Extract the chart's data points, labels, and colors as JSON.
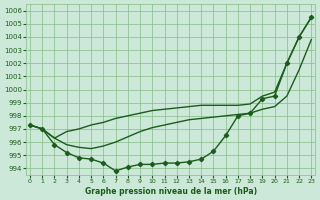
{
  "title": "Graphe pression niveau de la mer (hPa)",
  "bg_color": "#cce8d8",
  "grid_color": "#88bb88",
  "line_color": "#1a5c1a",
  "xlim": [
    -0.3,
    23.3
  ],
  "ylim": [
    993.5,
    1006.5
  ],
  "yticks": [
    994,
    995,
    996,
    997,
    998,
    999,
    1000,
    1001,
    1002,
    1003,
    1004,
    1005,
    1006
  ],
  "xticks": [
    0,
    1,
    2,
    3,
    4,
    5,
    6,
    7,
    8,
    9,
    10,
    11,
    12,
    13,
    14,
    15,
    16,
    17,
    18,
    19,
    20,
    21,
    22,
    23
  ],
  "line_marker": {
    "x": [
      0,
      1,
      2,
      3,
      4,
      5,
      6,
      7,
      8,
      9,
      10,
      11,
      12,
      13,
      14,
      15,
      16,
      17,
      18,
      19,
      20,
      21,
      22,
      23
    ],
    "y": [
      997.3,
      997.0,
      995.8,
      995.2,
      994.8,
      994.7,
      994.4,
      993.8,
      994.1,
      994.3,
      994.3,
      994.4,
      994.4,
      994.5,
      994.7,
      995.3,
      996.5,
      998.0,
      998.2,
      999.3,
      999.5,
      1002.0,
      1004.0,
      1005.5
    ],
    "marker": "D",
    "markersize": 2.2,
    "linewidth": 1.0
  },
  "line_high": {
    "x": [
      0,
      1,
      2,
      3,
      4,
      5,
      6,
      7,
      8,
      9,
      10,
      11,
      12,
      13,
      14,
      15,
      16,
      17,
      18,
      19,
      20,
      21,
      22,
      23
    ],
    "y": [
      997.3,
      997.0,
      996.3,
      996.8,
      997.0,
      997.3,
      997.5,
      997.8,
      998.0,
      998.2,
      998.4,
      998.5,
      998.6,
      998.7,
      998.8,
      998.8,
      998.8,
      998.8,
      998.9,
      999.5,
      999.8,
      1002.0,
      1004.0,
      1005.5
    ],
    "linewidth": 1.0
  },
  "line_mid": {
    "x": [
      0,
      1,
      2,
      3,
      4,
      5,
      6,
      7,
      8,
      9,
      10,
      11,
      12,
      13,
      14,
      15,
      16,
      17,
      18,
      19,
      20,
      21,
      22,
      23
    ],
    "y": [
      997.3,
      997.0,
      996.3,
      995.8,
      995.6,
      995.5,
      995.7,
      996.0,
      996.4,
      996.8,
      997.1,
      997.3,
      997.5,
      997.7,
      997.8,
      997.9,
      998.0,
      998.1,
      998.2,
      998.5,
      998.7,
      999.5,
      1001.5,
      1003.8
    ],
    "linewidth": 1.0
  }
}
